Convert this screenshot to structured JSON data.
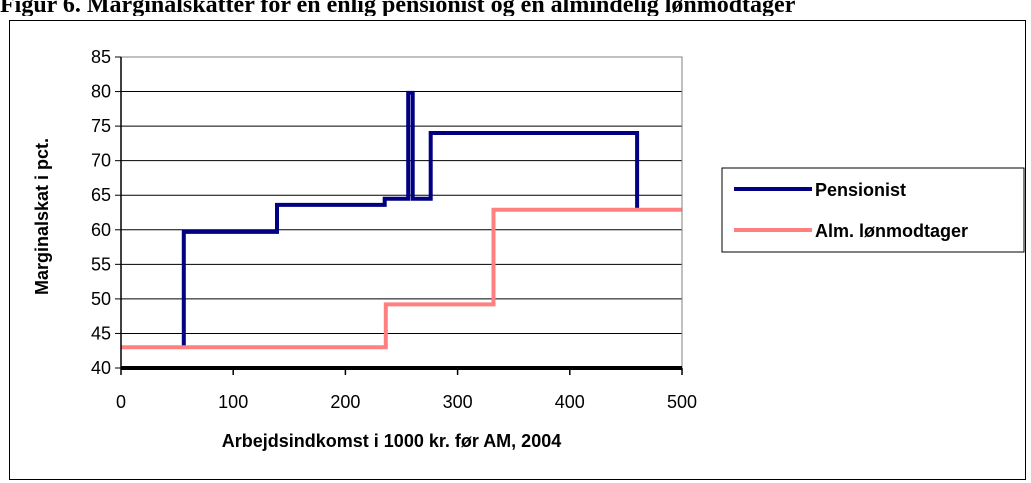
{
  "caption": "Figur 6. Marginalskatter for en enlig pensionist og en almindelig lønmodtager",
  "chart_data": {
    "type": "line",
    "title": "",
    "xlabel": "Arbejdsindkomst i 1000 kr. før AM, 2004",
    "ylabel": "Marginalskat i pct.",
    "xlim": [
      0,
      500
    ],
    "ylim": [
      40,
      85
    ],
    "xticks": [
      0,
      100,
      200,
      300,
      400,
      500
    ],
    "yticks": [
      40,
      45,
      50,
      55,
      60,
      65,
      70,
      75,
      80,
      85
    ],
    "grid": "horizontal",
    "legend_position": "right",
    "series": [
      {
        "name": "Pensionist",
        "color": "#000080",
        "points": [
          [
            56,
            43
          ],
          [
            56,
            59.7
          ],
          [
            139,
            59.7
          ],
          [
            139,
            63.6
          ],
          [
            235,
            63.6
          ],
          [
            235,
            64.5
          ],
          [
            256,
            64.5
          ],
          [
            256,
            79.8
          ],
          [
            260,
            79.8
          ],
          [
            260,
            64.5
          ],
          [
            276,
            64.5
          ],
          [
            276,
            74
          ],
          [
            460,
            74
          ],
          [
            460,
            63
          ]
        ]
      },
      {
        "name": "Alm. lønmodtager",
        "color": "#ff8080",
        "points": [
          [
            0,
            43
          ],
          [
            236,
            43
          ],
          [
            236,
            49.2
          ],
          [
            332,
            49.2
          ],
          [
            332,
            62.9
          ],
          [
            500,
            62.9
          ]
        ]
      }
    ]
  }
}
